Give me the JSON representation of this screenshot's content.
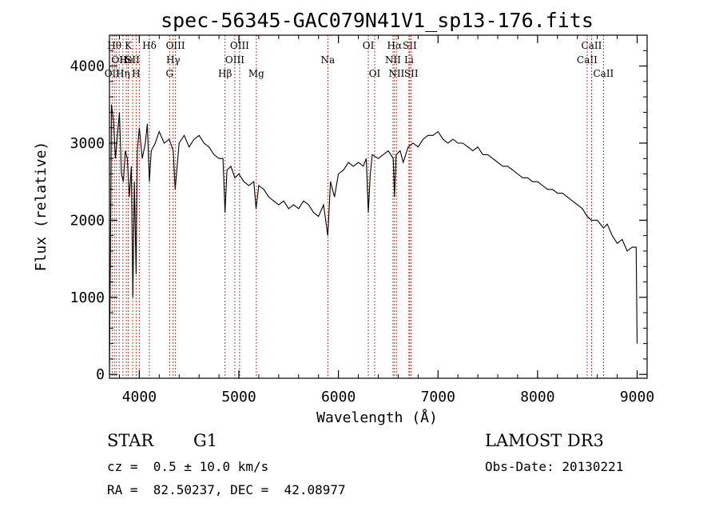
{
  "chart_data": {
    "type": "line",
    "title": "spec-56345-GAC079N41V1_sp13-176.fits",
    "xlabel": "Wavelength (Å)",
    "ylabel": "Flux (relative)",
    "xlim": [
      3700,
      9100
    ],
    "ylim": [
      -50,
      4400
    ],
    "xticks": [
      4000,
      5000,
      6000,
      7000,
      8000,
      9000
    ],
    "yticks": [
      0,
      1000,
      2000,
      3000,
      4000
    ],
    "grid": false,
    "series": [
      {
        "color": "#000000",
        "x": [
          3700,
          3710,
          3720,
          3740,
          3760,
          3780,
          3800,
          3820,
          3840,
          3860,
          3880,
          3900,
          3920,
          3935,
          3950,
          3968,
          3980,
          4000,
          4030,
          4060,
          4080,
          4101,
          4120,
          4160,
          4200,
          4250,
          4300,
          4340,
          4360,
          4400,
          4450,
          4500,
          4550,
          4600,
          4650,
          4700,
          4750,
          4800,
          4840,
          4861,
          4880,
          4920,
          4960,
          5000,
          5050,
          5100,
          5150,
          5172,
          5200,
          5250,
          5300,
          5350,
          5400,
          5450,
          5500,
          5550,
          5600,
          5650,
          5700,
          5750,
          5800,
          5850,
          5893,
          5920,
          5960,
          6000,
          6050,
          6100,
          6150,
          6200,
          6250,
          6280,
          6300,
          6320,
          6340,
          6400,
          6450,
          6500,
          6550,
          6563,
          6580,
          6620,
          6650,
          6700,
          6750,
          6800,
          6850,
          6900,
          6950,
          7000,
          7050,
          7100,
          7150,
          7200,
          7250,
          7300,
          7350,
          7400,
          7450,
          7500,
          7550,
          7600,
          7650,
          7700,
          7750,
          7800,
          7850,
          7900,
          7950,
          8000,
          8050,
          8100,
          8150,
          8200,
          8250,
          8300,
          8350,
          8400,
          8450,
          8498,
          8542,
          8600,
          8662,
          8700,
          8750,
          8800,
          8850,
          8900,
          8950,
          8990,
          9000
        ],
        "y": [
          0,
          1500,
          3500,
          3300,
          2800,
          3100,
          3400,
          2600,
          2500,
          2900,
          2800,
          2300,
          2700,
          1000,
          2500,
          1300,
          2900,
          3200,
          2800,
          3000,
          3250,
          2500,
          2900,
          3000,
          3150,
          3000,
          3050,
          2900,
          2400,
          3000,
          3100,
          2950,
          3050,
          3100,
          3000,
          2950,
          2850,
          2800,
          2800,
          2100,
          2650,
          2700,
          2550,
          2600,
          2500,
          2450,
          2500,
          2150,
          2450,
          2400,
          2300,
          2250,
          2200,
          2250,
          2150,
          2200,
          2150,
          2250,
          2200,
          2100,
          2050,
          2200,
          1800,
          2500,
          2300,
          2600,
          2650,
          2750,
          2700,
          2750,
          2700,
          2800,
          2100,
          2600,
          2850,
          2800,
          2850,
          2900,
          2800,
          2300,
          2850,
          2900,
          2750,
          2950,
          3000,
          2950,
          3050,
          3100,
          3100,
          3150,
          3050,
          3000,
          3050,
          3000,
          3000,
          2950,
          2900,
          2950,
          2850,
          2850,
          2800,
          2750,
          2700,
          2700,
          2650,
          2600,
          2550,
          2550,
          2500,
          2500,
          2450,
          2400,
          2400,
          2350,
          2350,
          2300,
          2250,
          2200,
          2150,
          2050,
          2000,
          2000,
          1900,
          1950,
          1800,
          1700,
          1750,
          1600,
          1650,
          1650,
          400
        ]
      }
    ],
    "lines": [
      {
        "x": 3727,
        "row": 2,
        "label": "OII"
      },
      {
        "x": 3750,
        "row": 0,
        "label": "Hθ"
      },
      {
        "x": 3770,
        "row": 0,
        "label": ""
      },
      {
        "x": 3798,
        "row": 1,
        "label": "OII"
      },
      {
        "x": 3835,
        "row": 2,
        "label": "Hη"
      },
      {
        "x": 3869,
        "row": 1,
        "label": "He"
      },
      {
        "x": 3889,
        "row": 0,
        "label": "K"
      },
      {
        "x": 3933,
        "row": 1,
        "label": "SII"
      },
      {
        "x": 3968,
        "row": 2,
        "label": "H"
      },
      {
        "x": 4000,
        "row": 1,
        "label": ""
      },
      {
        "x": 4101,
        "row": 0,
        "label": "Hδ"
      },
      {
        "x": 4304,
        "row": 2,
        "label": "G"
      },
      {
        "x": 4340,
        "row": 1,
        "label": "Hγ"
      },
      {
        "x": 4363,
        "row": 0,
        "label": "OIII"
      },
      {
        "x": 4861,
        "row": 2,
        "label": "Hβ"
      },
      {
        "x": 4959,
        "row": 1,
        "label": "OIII"
      },
      {
        "x": 5007,
        "row": 0,
        "label": "OIII"
      },
      {
        "x": 5175,
        "row": 2,
        "label": "Mg"
      },
      {
        "x": 5893,
        "row": 1,
        "label": "Na"
      },
      {
        "x": 6300,
        "row": 0,
        "label": "OI"
      },
      {
        "x": 6364,
        "row": 2,
        "label": "OI"
      },
      {
        "x": 6548,
        "row": 1,
        "label": "NII"
      },
      {
        "x": 6563,
        "row": 0,
        "label": "Hα"
      },
      {
        "x": 6583,
        "row": 2,
        "label": "NII"
      },
      {
        "x": 6708,
        "row": 1,
        "label": "Li"
      },
      {
        "x": 6716,
        "row": 0,
        "label": "SII"
      },
      {
        "x": 6731,
        "row": 2,
        "label": "SII"
      },
      {
        "x": 8498,
        "row": 1,
        "label": "CaII"
      },
      {
        "x": 8542,
        "row": 0,
        "label": "CaII"
      },
      {
        "x": 8662,
        "row": 2,
        "label": "CaII"
      }
    ],
    "line_color": "#c0392b"
  },
  "info": {
    "object_class": "STAR",
    "subclass": "G1",
    "survey": "LAMOST DR3",
    "cz": "cz =  0.5 ± 10.0 km/s",
    "obs_date": "Obs-Date: 20130221",
    "coords": "RA =  82.50237, DEC =  42.08977"
  }
}
